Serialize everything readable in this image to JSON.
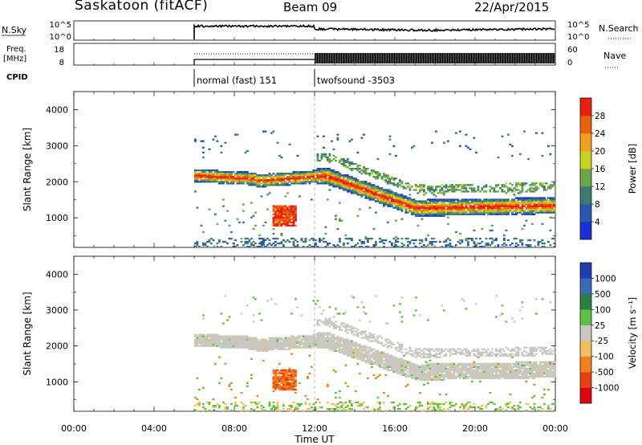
{
  "header": {
    "station": "Saskatoon (fitACF)",
    "beam": "Beam 09",
    "date": "22/Apr/2015"
  },
  "status_panels": {
    "nsky_label": "N.Sky",
    "nsky_ticks": [
      "10^5",
      "10^0"
    ],
    "nsearch_label": "N.Search",
    "nsearch_ticks": [
      "10^5",
      "10^0"
    ],
    "freq_label_line1": "Freq.",
    "freq_label_line2": "[MHz]",
    "freq_ticks": [
      "18",
      "8"
    ],
    "nave_label": "Nave",
    "nave_ticks": [
      "60",
      "0"
    ],
    "cpid_label": "CPID",
    "cpid_segments": [
      {
        "start_hour": 6.0,
        "label": "normal (fast) 151"
      },
      {
        "start_hour": 12.0,
        "label": "twofsound -3503"
      }
    ]
  },
  "chart_data": [
    {
      "type": "heatmap",
      "name": "power",
      "ylabel": "Slant Range [km]",
      "ylim": [
        180,
        4500
      ],
      "yticks": [
        "1000",
        "2000",
        "3000",
        "4000"
      ],
      "colorbar_label": "Power [dB]",
      "colorbar_ticks": [
        "4",
        "8",
        "12",
        "16",
        "20",
        "24",
        "28"
      ],
      "colorbar_colors": [
        "#1a2fd6",
        "#2a55b0",
        "#3c7a72",
        "#6aa548",
        "#c8d020",
        "#f0a020",
        "#e86010",
        "#e82010"
      ]
    },
    {
      "type": "heatmap",
      "name": "velocity",
      "ylabel": "Slant Range [km]",
      "ylim": [
        180,
        4500
      ],
      "yticks": [
        "1000",
        "2000",
        "3000",
        "4000"
      ],
      "colorbar_label": "Velocity [m s⁻¹]",
      "colorbar_ticks": [
        "1000",
        "500",
        "100",
        "25",
        "-25",
        "-100",
        "-500",
        "-1000"
      ],
      "colorbar_colors": [
        "#2040b0",
        "#3a6ab8",
        "#2e8040",
        "#60c040",
        "#c8c8c0",
        "#f0c060",
        "#f08020",
        "#e84010",
        "#e00010"
      ]
    }
  ],
  "x_axis": {
    "xlabel": "Time UT",
    "xlim_hours": [
      0,
      24
    ],
    "ticks": [
      "00:00",
      "04:00",
      "08:00",
      "12:00",
      "16:00",
      "20:00",
      "00:00"
    ]
  }
}
